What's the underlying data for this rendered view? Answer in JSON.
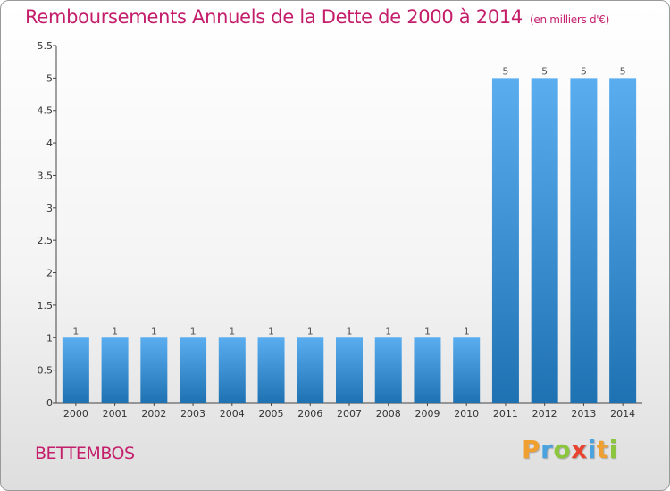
{
  "header": {
    "title": "Remboursements Annuels de la Dette de 2000 à 2014",
    "unit": "(en milliers d'€)"
  },
  "footer": {
    "commune": "BETTEMBOS",
    "logo": [
      "P",
      "r",
      "o",
      "x",
      "i",
      "t",
      "i"
    ]
  },
  "colors": {
    "title": "#c41e6b",
    "bar_top": "#5aaef0",
    "bar_bottom": "#1f72b2"
  },
  "chart_data": {
    "type": "bar",
    "title": "Remboursements Annuels de la Dette de 2000 à 2014",
    "xlabel": "",
    "ylabel": "",
    "categories": [
      "2000",
      "2001",
      "2002",
      "2003",
      "2004",
      "2005",
      "2006",
      "2007",
      "2008",
      "2009",
      "2010",
      "2011",
      "2012",
      "2013",
      "2014"
    ],
    "values": [
      1,
      1,
      1,
      1,
      1,
      1,
      1,
      1,
      1,
      1,
      1,
      5,
      5,
      5,
      5
    ],
    "data_labels": [
      "1",
      "1",
      "1",
      "1",
      "1",
      "1",
      "1",
      "1",
      "1",
      "1",
      "1",
      "5",
      "5",
      "5",
      "5"
    ],
    "ylim": [
      0,
      5.5
    ],
    "yticks": [
      0,
      0.5,
      1,
      1.5,
      2,
      2.5,
      3,
      3.5,
      4,
      4.5,
      5,
      5.5
    ],
    "ytick_labels": [
      "0",
      "0.5",
      "1",
      "1.5",
      "2",
      "2.5",
      "3",
      "3.5",
      "4",
      "4.5",
      "5",
      "5.5"
    ],
    "grid": false,
    "legend": "none"
  }
}
